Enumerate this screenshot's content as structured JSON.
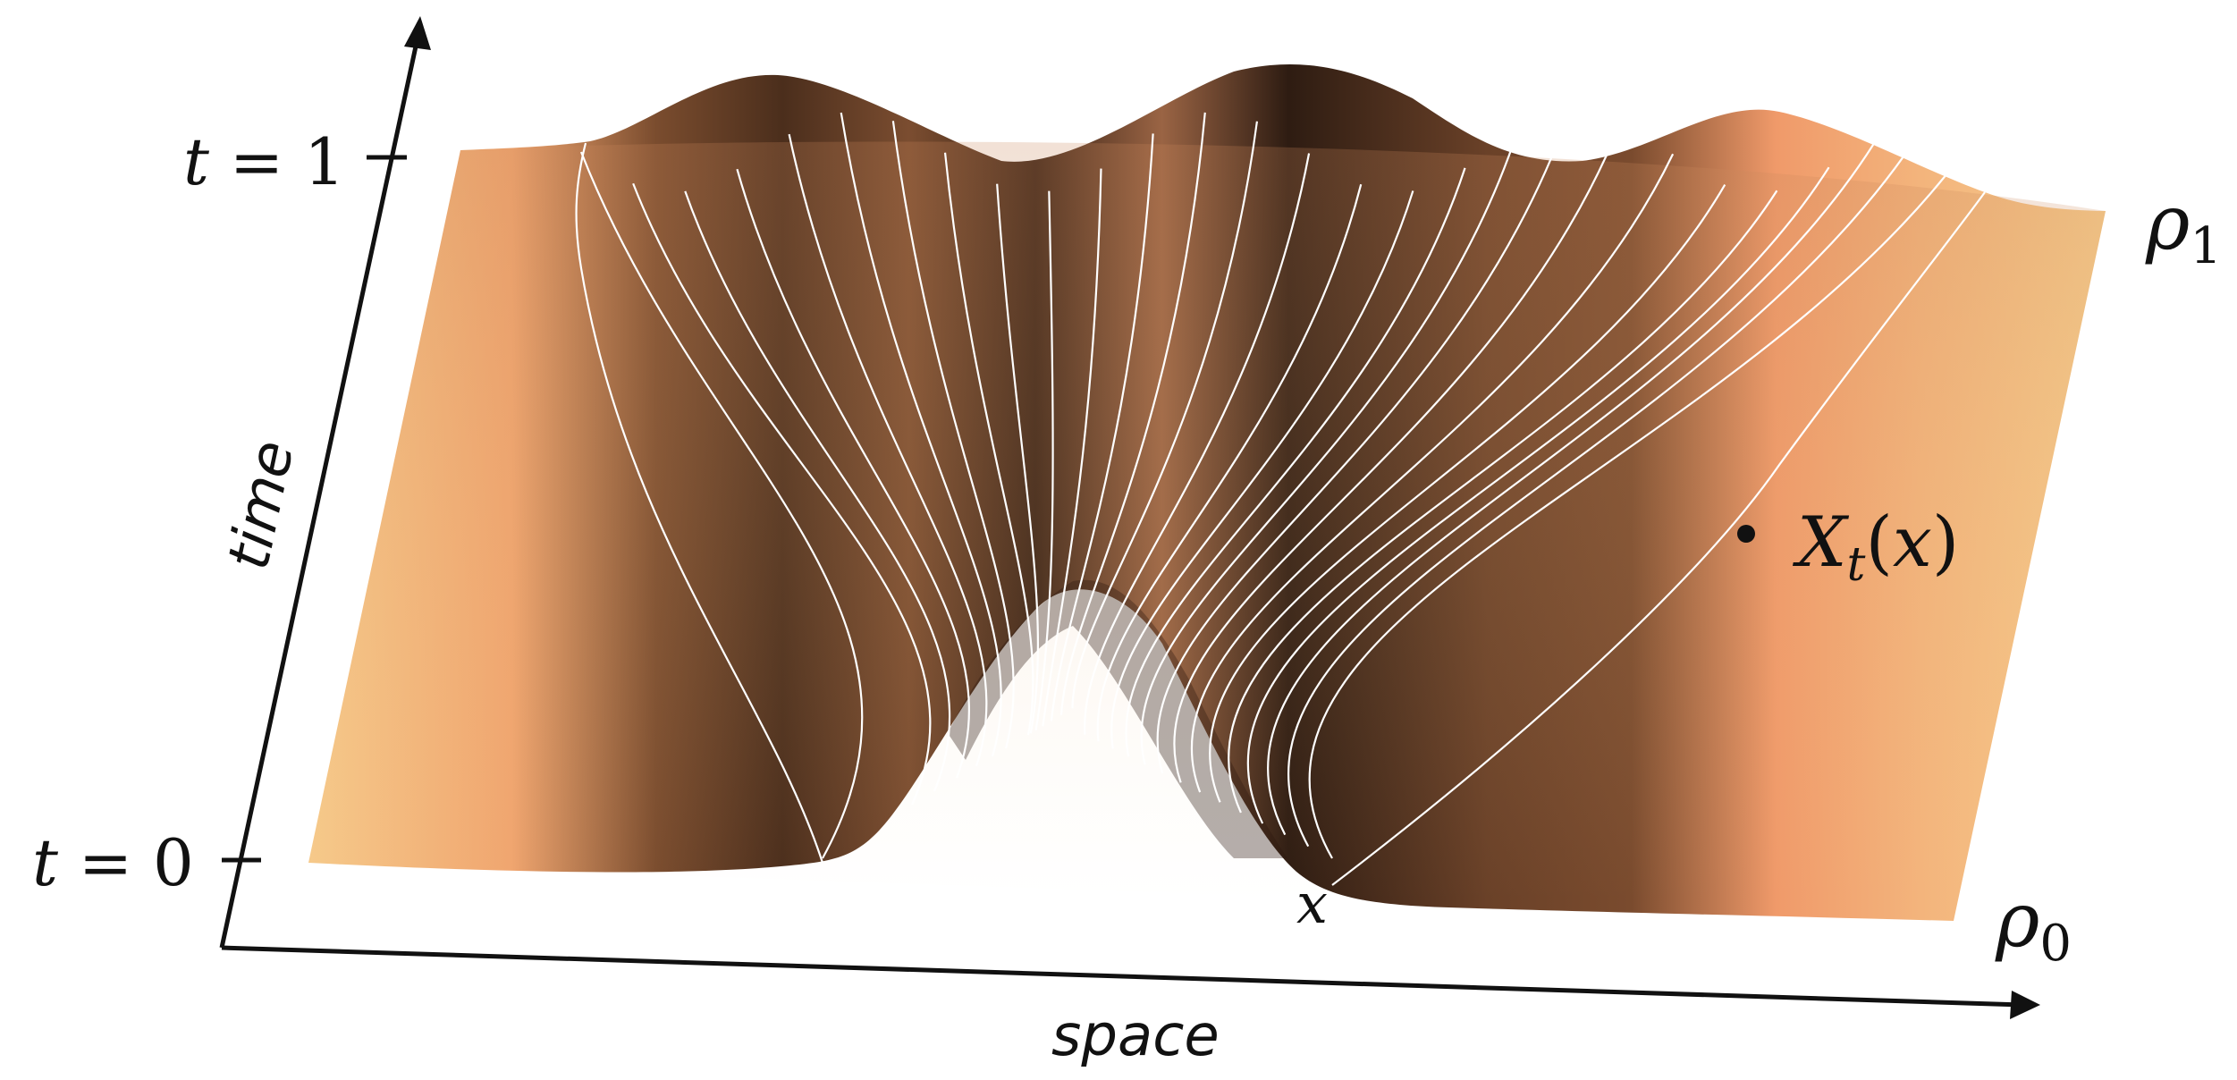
{
  "figure": {
    "axes": {
      "time_label": "time",
      "space_label": "space",
      "tick_t0": "t = 0",
      "tick_t1": "t = 1"
    },
    "labels": {
      "rho0": "ρ0",
      "rho1": "ρ1",
      "x_point": "x",
      "trajectory_point": "Xt(x)"
    },
    "colors": {
      "surface_light": "#f6cc8c",
      "surface_mid": "#f0a06e",
      "surface_dark": "#2e1c12",
      "flow_lines": "#ffffff",
      "axis": "#111111"
    },
    "content": {
      "initial_density_rho0": "bimodal density with a dip at x",
      "final_density_rho1": "trimodal density",
      "flow_line_count": 28
    }
  }
}
